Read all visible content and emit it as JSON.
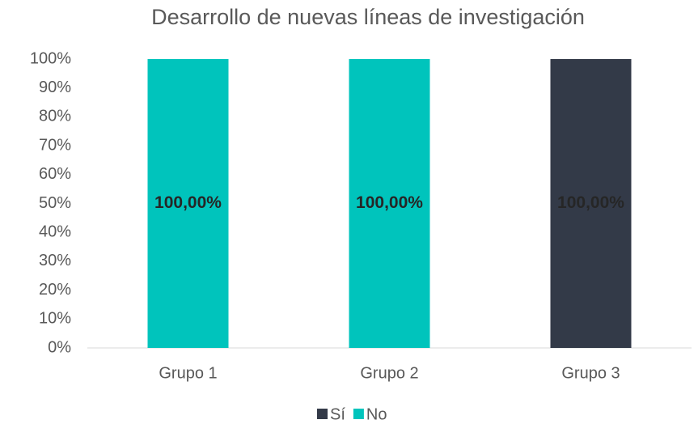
{
  "chart_data": {
    "type": "stacked_bar",
    "title": "Desarrollo de nuevas líneas de investigación",
    "categories": [
      "Grupo 1",
      "Grupo 2",
      "Grupo 3"
    ],
    "series": [
      {
        "name": "Sí",
        "color": "#333a48",
        "values": [
          0,
          0,
          100
        ],
        "value_labels": [
          null,
          null,
          "100,00%"
        ]
      },
      {
        "name": "No",
        "color": "#00c4bc",
        "values": [
          100,
          100,
          0
        ],
        "value_labels": [
          "100,00%",
          "100,00%",
          null
        ]
      }
    ],
    "ylim": [
      0,
      100
    ],
    "yticks": [
      {
        "value": 0,
        "label": "0%"
      },
      {
        "value": 10,
        "label": "10%"
      },
      {
        "value": 20,
        "label": "20%"
      },
      {
        "value": 30,
        "label": "30%"
      },
      {
        "value": 40,
        "label": "40%"
      },
      {
        "value": 50,
        "label": "50%"
      },
      {
        "value": 60,
        "label": "60%"
      },
      {
        "value": 70,
        "label": "70%"
      },
      {
        "value": 80,
        "label": "80%"
      },
      {
        "value": 90,
        "label": "90%"
      },
      {
        "value": 100,
        "label": "100%"
      }
    ],
    "grid": false,
    "legend": "bottom"
  }
}
